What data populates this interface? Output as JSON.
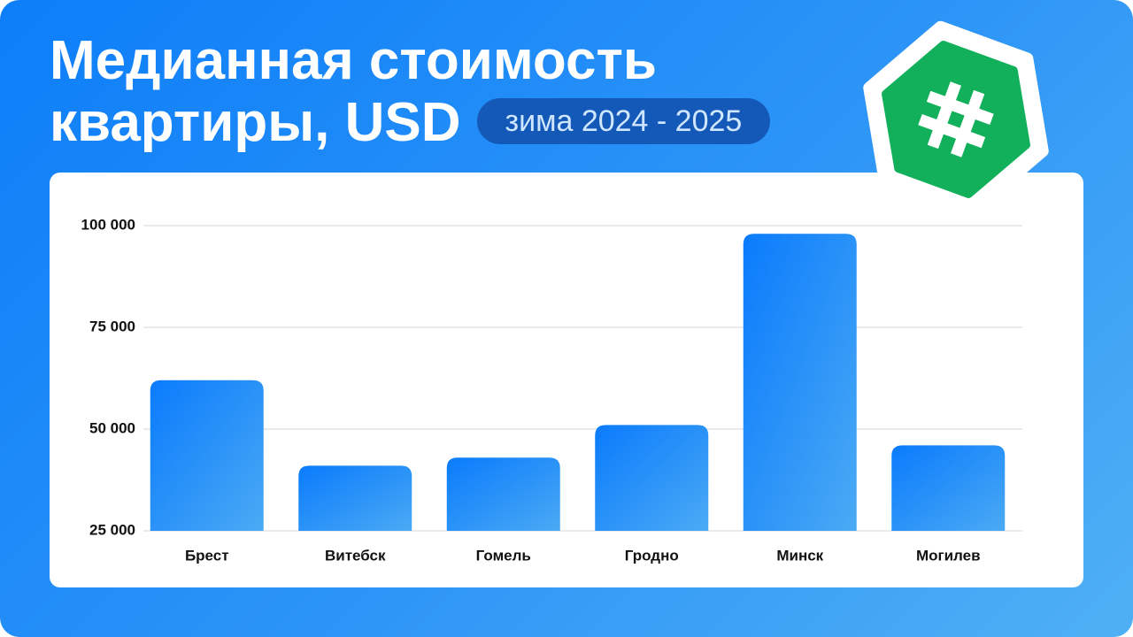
{
  "chart_data": {
    "type": "bar",
    "title": "Медианная стоимость квартиры, USD",
    "subtitle": "зима 2024 - 2025",
    "categories": [
      "Брест",
      "Витебск",
      "Гомель",
      "Гродно",
      "Минск",
      "Могилев"
    ],
    "values": [
      62000,
      41000,
      43000,
      51000,
      98000,
      46000
    ],
    "color": "#0a7bfc",
    "ylim": [
      25000,
      100000
    ],
    "yticks": [
      {
        "value": 25000,
        "label": "25 000"
      },
      {
        "value": 50000,
        "label": "50 000"
      },
      {
        "value": 75000,
        "label": "75 000"
      },
      {
        "value": 100000,
        "label": "100 000"
      }
    ],
    "grid": true
  }
}
